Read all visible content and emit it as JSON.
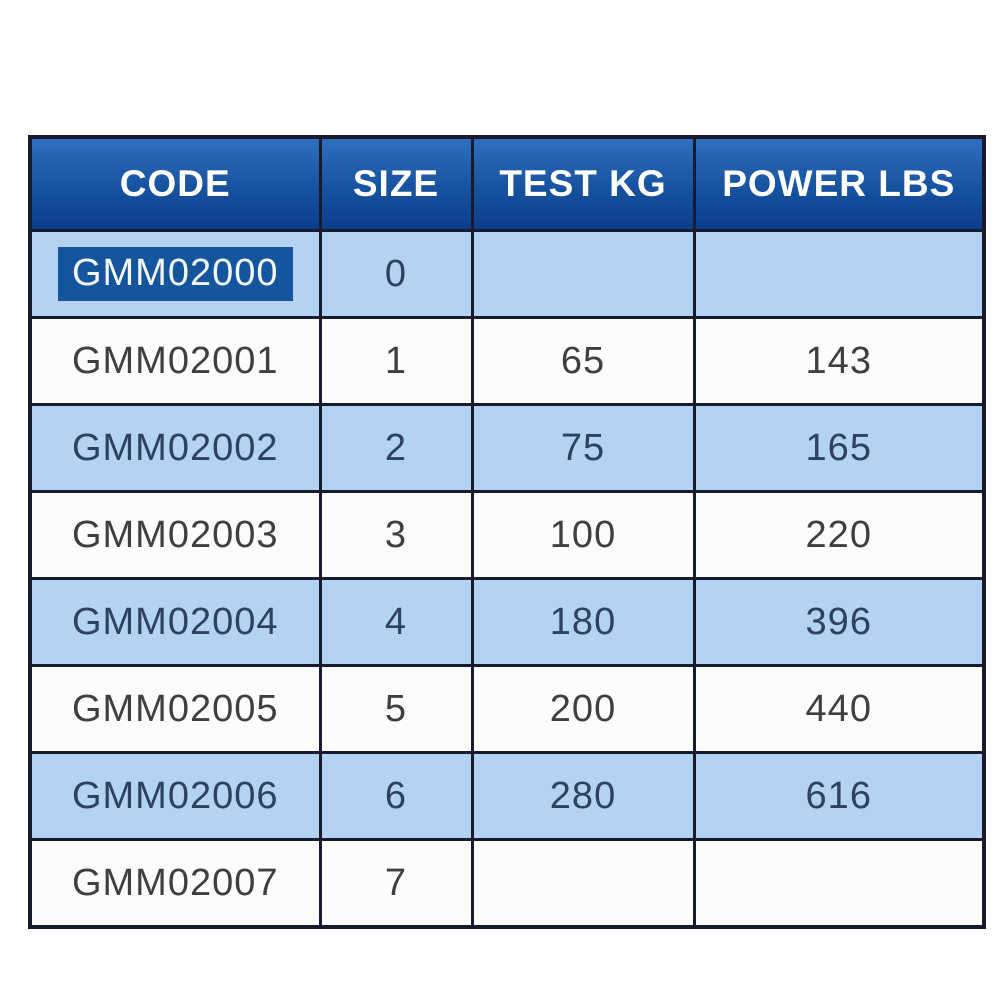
{
  "table": {
    "headers": [
      "CODE",
      "SIZE",
      "TEST KG",
      "POWER LBS"
    ],
    "rows": [
      {
        "code": "GMM02000",
        "size": "0",
        "test_kg": "",
        "power_lbs": ""
      },
      {
        "code": "GMM02001",
        "size": "1",
        "test_kg": "65",
        "power_lbs": "143"
      },
      {
        "code": "GMM02002",
        "size": "2",
        "test_kg": "75",
        "power_lbs": "165"
      },
      {
        "code": "GMM02003",
        "size": "3",
        "test_kg": "100",
        "power_lbs": "220"
      },
      {
        "code": "GMM02004",
        "size": "4",
        "test_kg": "180",
        "power_lbs": "396"
      },
      {
        "code": "GMM02005",
        "size": "5",
        "test_kg": "200",
        "power_lbs": "440"
      },
      {
        "code": "GMM02006",
        "size": "6",
        "test_kg": "280",
        "power_lbs": "616"
      },
      {
        "code": "GMM02007",
        "size": "7",
        "test_kg": "",
        "power_lbs": ""
      }
    ],
    "selection": {
      "selected_text": "GMM02000",
      "row_index": 0,
      "column": "CODE"
    }
  },
  "colors": {
    "header_gradient_top": "#2f6fbe",
    "header_gradient_bottom": "#0b3e8d",
    "header_text": "#ffffff",
    "row_blue_bg": "#b4d3f3",
    "row_blue_text": "#2d4160",
    "row_white_bg": "#fcfcfa",
    "row_white_text": "#3f3f3f",
    "border": "#181a2e",
    "selection_bg": "#15559d",
    "selection_text": "#f2f7fc",
    "page_bg": "#ffffff"
  },
  "chart_data": {
    "type": "table",
    "columns": [
      "CODE",
      "SIZE",
      "TEST KG",
      "POWER LBS"
    ],
    "rows": [
      [
        "GMM02000",
        "0",
        "",
        ""
      ],
      [
        "GMM02001",
        "1",
        "65",
        "143"
      ],
      [
        "GMM02002",
        "2",
        "75",
        "165"
      ],
      [
        "GMM02003",
        "3",
        "100",
        "220"
      ],
      [
        "GMM02004",
        "4",
        "180",
        "396"
      ],
      [
        "GMM02005",
        "5",
        "200",
        "440"
      ],
      [
        "GMM02006",
        "6",
        "280",
        "616"
      ],
      [
        "GMM02007",
        "7",
        "",
        ""
      ]
    ]
  }
}
